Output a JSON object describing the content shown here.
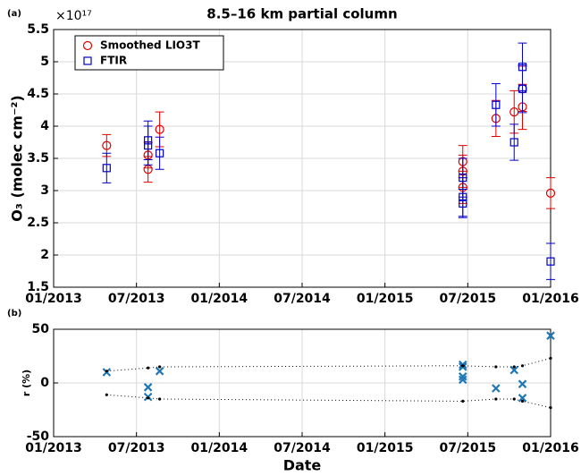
{
  "chart_data": [
    {
      "type": "errorbar",
      "panel_label": "(a)",
      "title": "8.5–16 km partial column",
      "y_label": "O₃ (molec cm⁻²)",
      "y_scale_label": "×10¹⁷",
      "xlim": [
        2013,
        2016
      ],
      "ylim": [
        1.5,
        5.5
      ],
      "xticks": [
        {
          "value": 2013,
          "label": "01/2013"
        },
        {
          "value": 2013.5,
          "label": "07/2013"
        },
        {
          "value": 2014,
          "label": "01/2014"
        },
        {
          "value": 2014.5,
          "label": "07/2014"
        },
        {
          "value": 2015,
          "label": "01/2015"
        },
        {
          "value": 2015.5,
          "label": "07/2015"
        },
        {
          "value": 2016,
          "label": "01/2016"
        }
      ],
      "yticks": [
        1.5,
        2,
        2.5,
        3,
        3.5,
        4,
        4.5,
        5,
        5.5
      ],
      "grid": true,
      "legend": "upper left",
      "series": [
        {
          "name": "Smoothed LIO3T",
          "color": "#e00000",
          "marker": "circle",
          "x": [
            2013.32,
            2013.57,
            2013.57,
            2013.64,
            2015.47,
            2015.47,
            2015.47,
            2015.67,
            2015.78,
            2015.83,
            2015.83,
            2016.0
          ],
          "values": [
            3.7,
            3.55,
            3.33,
            3.95,
            3.45,
            3.3,
            3.05,
            4.12,
            4.22,
            4.3,
            4.58,
            2.96
          ],
          "errors": [
            0.17,
            0.2,
            0.2,
            0.27,
            0.25,
            0.25,
            0.25,
            0.28,
            0.33,
            0.35,
            0.35,
            0.24
          ]
        },
        {
          "name": "FTIR",
          "color": "#0000cc",
          "marker": "square",
          "x": [
            2013.32,
            2013.57,
            2013.57,
            2013.64,
            2015.47,
            2015.47,
            2015.47,
            2015.67,
            2015.78,
            2015.83,
            2015.83,
            2016.0
          ],
          "values": [
            3.35,
            3.78,
            3.7,
            3.58,
            3.2,
            2.9,
            2.8,
            4.33,
            3.75,
            4.92,
            4.58,
            1.9
          ],
          "errors": [
            0.23,
            0.3,
            0.3,
            0.25,
            0.3,
            0.3,
            0.22,
            0.33,
            0.28,
            0.37,
            0.37,
            0.28
          ]
        }
      ]
    },
    {
      "type": "scatter",
      "panel_label": "(b)",
      "y_label": "r (%)",
      "x_label": "Date",
      "xlim": [
        2013,
        2016
      ],
      "ylim": [
        -50,
        50
      ],
      "xticks": [
        {
          "value": 2013,
          "label": "01/2013"
        },
        {
          "value": 2013.5,
          "label": "07/2013"
        },
        {
          "value": 2014,
          "label": "01/2014"
        },
        {
          "value": 2014.5,
          "label": "07/2014"
        },
        {
          "value": 2015,
          "label": "01/2015"
        },
        {
          "value": 2015.5,
          "label": "07/2015"
        },
        {
          "value": 2016,
          "label": "01/2016"
        }
      ],
      "yticks": [
        -50,
        0,
        50
      ],
      "grid": true,
      "series": [
        {
          "color": "#1f77b4",
          "marker": "x",
          "x": [
            2013.32,
            2013.57,
            2013.57,
            2013.64,
            2015.47,
            2015.47,
            2015.47,
            2015.47,
            2015.67,
            2015.78,
            2015.83,
            2015.83,
            2016.0
          ],
          "values": [
            10,
            -4,
            -13,
            11,
            17,
            15,
            6,
            3,
            -5,
            12,
            -1,
            -14,
            44
          ]
        },
        {
          "color": "#000000",
          "marker": "dotted-line",
          "x": [
            2013.32,
            2013.57,
            2013.64,
            2015.47,
            2015.67,
            2015.78,
            2015.83,
            2016.0
          ],
          "values": [
            11,
            14,
            15,
            16,
            15,
            15,
            16,
            23
          ]
        },
        {
          "color": "#000000",
          "marker": "dotted-line",
          "x": [
            2013.32,
            2013.57,
            2013.64,
            2015.47,
            2015.67,
            2015.78,
            2015.83,
            2016.0
          ],
          "values": [
            -11,
            -14,
            -15,
            -17,
            -15,
            -15,
            -17,
            -23
          ]
        }
      ]
    }
  ]
}
